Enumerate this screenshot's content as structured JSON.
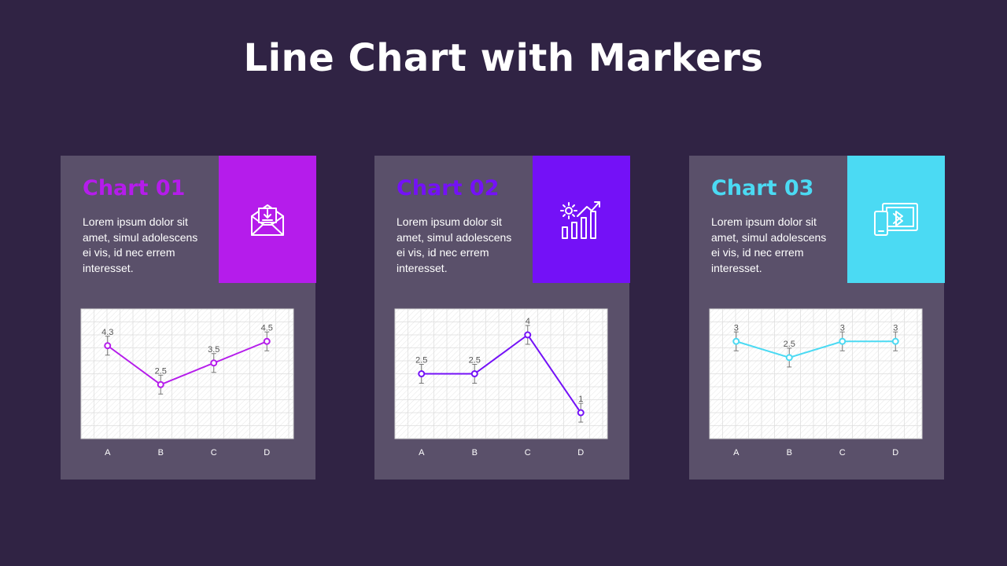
{
  "page": {
    "title": "Line Chart with Markers",
    "background": "#302344"
  },
  "cards": [
    {
      "title": "Chart 01",
      "text": "Lorem ipsum dolor sit amet, simul adolescens ei vis, id nec errem interesset.",
      "accent": "#b51ceb",
      "icon": "mail-download-icon"
    },
    {
      "title": "Chart 02",
      "text": "Lorem ipsum dolor sit amet, simul adolescens ei vis, id nec errem interesset.",
      "accent": "#7411f7",
      "icon": "gear-growth-chart-icon"
    },
    {
      "title": "Chart 03",
      "text": "Lorem ipsum dolor sit amet, simul adolescens ei vis, id nec errem interesset.",
      "accent": "#4bdaf3",
      "icon": "bluetooth-devices-icon"
    }
  ],
  "chart_data": [
    {
      "type": "line",
      "categories": [
        "A",
        "B",
        "C",
        "D"
      ],
      "series": [
        {
          "values": [
            4.3,
            2.5,
            3.5,
            4.5
          ]
        }
      ],
      "data_labels": [
        "4.3",
        "2.5",
        "3.5",
        "4.5"
      ],
      "ylim": [
        0,
        6
      ],
      "error_bars": true,
      "grid": true,
      "color": "#b51ceb"
    },
    {
      "type": "line",
      "categories": [
        "A",
        "B",
        "C",
        "D"
      ],
      "series": [
        {
          "values": [
            2.5,
            2.5,
            4,
            1
          ]
        }
      ],
      "data_labels": [
        "2.5",
        "2.5",
        "4",
        "1"
      ],
      "ylim": [
        0,
        5
      ],
      "error_bars": true,
      "grid": true,
      "color": "#7411f7"
    },
    {
      "type": "line",
      "categories": [
        "A",
        "B",
        "C",
        "D"
      ],
      "series": [
        {
          "values": [
            3,
            2.5,
            3,
            3
          ]
        }
      ],
      "data_labels": [
        "3",
        "2.5",
        "3",
        "3"
      ],
      "ylim": [
        0,
        4
      ],
      "error_bars": true,
      "grid": true,
      "color": "#4bdaf3"
    }
  ]
}
